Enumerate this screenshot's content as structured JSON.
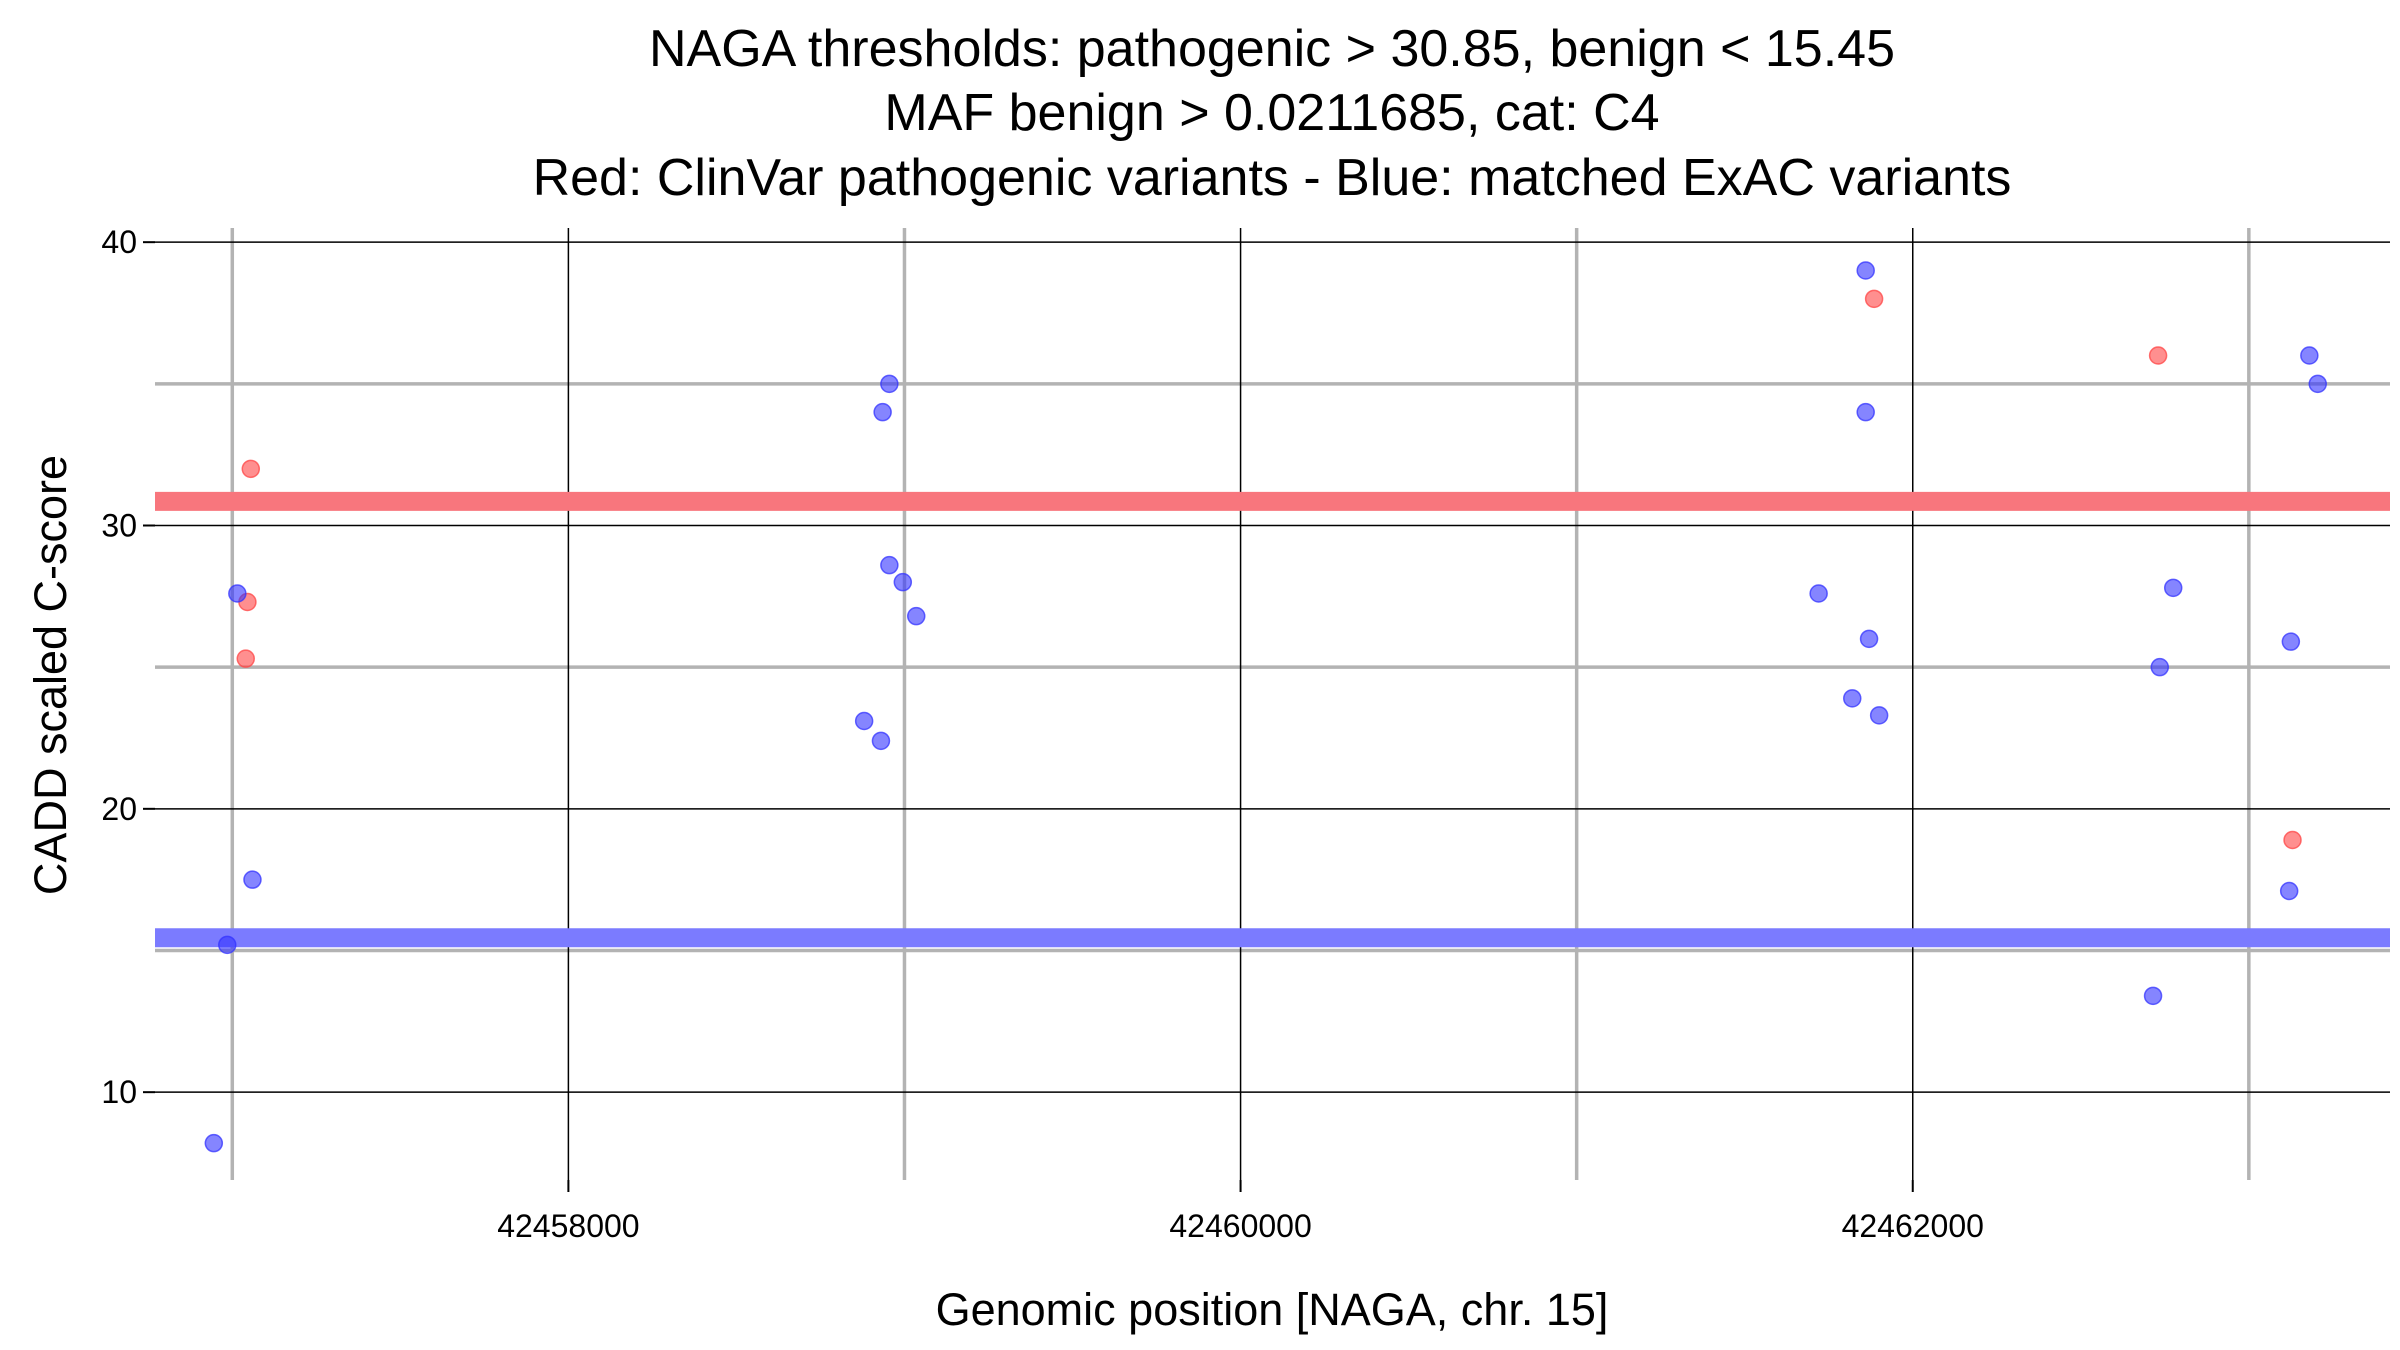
{
  "chart_data": {
    "type": "scatter",
    "title_lines": [
      "NAGA thresholds: pathogenic > 30.85, benign < 15.45",
      "MAF benign > 0.0211685, cat: C4",
      "Red: ClinVar pathogenic variants - Blue: matched ExAC variants"
    ],
    "xlabel": "Genomic position [NAGA, chr. 15]",
    "ylabel": "CADD scaled C-score",
    "xlim": [
      42456770,
      42463420
    ],
    "ylim": [
      6.9,
      40.5
    ],
    "x_major_ticks": [
      42458000,
      42460000,
      42462000
    ],
    "x_tick_labels": [
      "42458000",
      "42460000",
      "42462000"
    ],
    "x_minor_ticks": [
      42457000,
      42459000,
      42461000,
      42463000
    ],
    "y_major_ticks": [
      10,
      20,
      30,
      40
    ],
    "y_tick_labels": [
      "10",
      "20",
      "30",
      "40"
    ],
    "y_minor_ticks": [
      15,
      25,
      35
    ],
    "thresholds": {
      "pathogenic": 30.85,
      "benign": 15.45,
      "pathogenic_color": "#f8767d",
      "benign_color": "#7b7bff"
    },
    "series": [
      {
        "name": "ClinVar pathogenic variants",
        "color": "#ff4444",
        "points": [
          {
            "x": 42457055,
            "y": 32.0
          },
          {
            "x": 42457045,
            "y": 27.3
          },
          {
            "x": 42457040,
            "y": 25.3
          },
          {
            "x": 42461885,
            "y": 38.0
          },
          {
            "x": 42462730,
            "y": 36.0
          },
          {
            "x": 42463130,
            "y": 18.9
          }
        ]
      },
      {
        "name": "matched ExAC variants",
        "color": "#3333ff",
        "points": [
          {
            "x": 42457015,
            "y": 27.6
          },
          {
            "x": 42457060,
            "y": 17.5
          },
          {
            "x": 42456985,
            "y": 15.2
          },
          {
            "x": 42456945,
            "y": 8.2
          },
          {
            "x": 42458955,
            "y": 35.0
          },
          {
            "x": 42458935,
            "y": 34.0
          },
          {
            "x": 42458955,
            "y": 28.6
          },
          {
            "x": 42458995,
            "y": 28.0
          },
          {
            "x": 42459035,
            "y": 26.8
          },
          {
            "x": 42458880,
            "y": 23.1
          },
          {
            "x": 42458930,
            "y": 22.4
          },
          {
            "x": 42461860,
            "y": 39.0
          },
          {
            "x": 42461860,
            "y": 34.0
          },
          {
            "x": 42461720,
            "y": 27.6
          },
          {
            "x": 42461870,
            "y": 26.0
          },
          {
            "x": 42461820,
            "y": 23.9
          },
          {
            "x": 42461900,
            "y": 23.3
          },
          {
            "x": 42463180,
            "y": 36.0
          },
          {
            "x": 42463205,
            "y": 35.0
          },
          {
            "x": 42462775,
            "y": 27.8
          },
          {
            "x": 42462735,
            "y": 25.0
          },
          {
            "x": 42463125,
            "y": 25.9
          },
          {
            "x": 42463120,
            "y": 17.1
          },
          {
            "x": 42462715,
            "y": 13.4
          }
        ]
      }
    ]
  }
}
